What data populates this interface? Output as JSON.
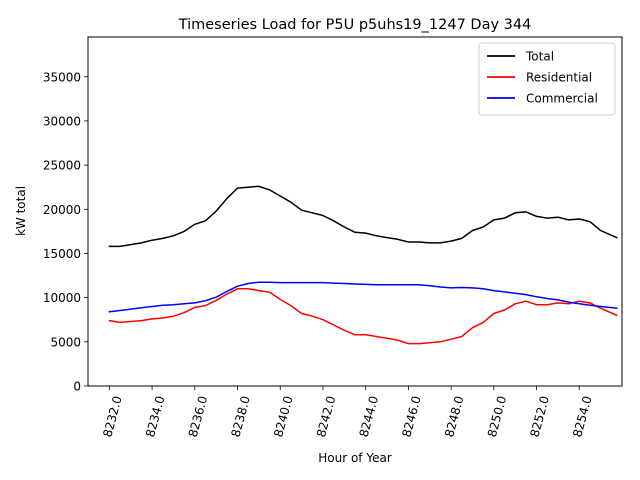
{
  "chart_data": {
    "type": "line",
    "title": "Timeseries Load for P5U p5uhs19_1247  Day 344",
    "xlabel": "Hour of Year",
    "ylabel": "kW total",
    "xlim": [
      8231.0,
      8256.0
    ],
    "ylim": [
      0,
      39500
    ],
    "xticks": [
      8232,
      8234,
      8236,
      8238,
      8240,
      8242,
      8244,
      8246,
      8248,
      8250,
      8252,
      8254
    ],
    "xtick_labels": [
      "8232.0",
      "8234.0",
      "8236.0",
      "8238.0",
      "8240.0",
      "8242.0",
      "8244.0",
      "8246.0",
      "8248.0",
      "8250.0",
      "8252.0",
      "8254.0"
    ],
    "yticks": [
      0,
      5000,
      10000,
      15000,
      20000,
      25000,
      30000,
      35000
    ],
    "ytick_labels": [
      "0",
      "5000",
      "10000",
      "15000",
      "20000",
      "25000",
      "30000",
      "35000"
    ],
    "legend_position": "top-right",
    "series": [
      {
        "name": "Total",
        "color": "#000000",
        "x": [
          8232.0,
          8232.5,
          8233.0,
          8233.5,
          8234.0,
          8234.5,
          8235.0,
          8235.5,
          8236.0,
          8236.5,
          8237.0,
          8237.5,
          8238.0,
          8238.5,
          8239.0,
          8239.5,
          8240.0,
          8240.5,
          8241.0,
          8241.5,
          8242.0,
          8242.5,
          8243.0,
          8243.5,
          8244.0,
          8244.5,
          8245.0,
          8245.5,
          8246.0,
          8246.5,
          8247.0,
          8247.5,
          8248.0,
          8248.5,
          8249.0,
          8249.5,
          8250.0,
          8250.5,
          8251.0,
          8251.5,
          8252.0,
          8252.5,
          8253.0,
          8253.5,
          8254.0,
          8254.5,
          8255.0,
          8255.75
        ],
        "values": [
          15800,
          15800,
          16000,
          16200,
          16500,
          16700,
          17000,
          17500,
          18300,
          18700,
          19800,
          21200,
          22400,
          22500,
          22600,
          22200,
          21500,
          20800,
          19900,
          19600,
          19300,
          18700,
          18000,
          17400,
          17300,
          17000,
          16800,
          16600,
          16300,
          16300,
          16200,
          16200,
          16400,
          16700,
          17600,
          18000,
          18800,
          19000,
          19600,
          19700,
          19200,
          19000,
          19100,
          18800,
          18900,
          18600,
          17600,
          16800
        ]
      },
      {
        "name": "Residential",
        "color": "#ff0000",
        "x": [
          8232.0,
          8232.5,
          8233.0,
          8233.5,
          8234.0,
          8234.5,
          8235.0,
          8235.5,
          8236.0,
          8236.5,
          8237.0,
          8237.5,
          8238.0,
          8238.5,
          8239.0,
          8239.5,
          8240.0,
          8240.5,
          8241.0,
          8241.5,
          8242.0,
          8242.5,
          8243.0,
          8243.5,
          8244.0,
          8244.5,
          8245.0,
          8245.5,
          8246.0,
          8246.5,
          8247.0,
          8247.5,
          8248.0,
          8248.5,
          8249.0,
          8249.5,
          8250.0,
          8250.5,
          8251.0,
          8251.5,
          8252.0,
          8252.5,
          8253.0,
          8253.5,
          8254.0,
          8254.5,
          8255.0,
          8255.75
        ],
        "values": [
          7400,
          7200,
          7300,
          7400,
          7600,
          7700,
          7900,
          8300,
          8900,
          9100,
          9700,
          10400,
          11000,
          11000,
          10800,
          10600,
          9800,
          9100,
          8200,
          7900,
          7500,
          6900,
          6300,
          5800,
          5800,
          5600,
          5400,
          5200,
          4800,
          4800,
          4900,
          5000,
          5300,
          5600,
          6600,
          7200,
          8200,
          8600,
          9300,
          9600,
          9200,
          9200,
          9400,
          9300,
          9600,
          9400,
          8800,
          8000
        ]
      },
      {
        "name": "Commercial",
        "color": "#0000ff",
        "x": [
          8232.0,
          8232.5,
          8233.0,
          8233.5,
          8234.0,
          8234.5,
          8235.0,
          8235.5,
          8236.0,
          8236.5,
          8237.0,
          8237.5,
          8238.0,
          8238.5,
          8239.0,
          8239.5,
          8240.0,
          8240.5,
          8241.0,
          8241.5,
          8242.0,
          8242.5,
          8243.0,
          8243.5,
          8244.0,
          8244.5,
          8245.0,
          8245.5,
          8246.0,
          8246.5,
          8247.0,
          8247.5,
          8248.0,
          8248.5,
          8249.0,
          8249.5,
          8250.0,
          8250.5,
          8251.0,
          8251.5,
          8252.0,
          8252.5,
          8253.0,
          8253.5,
          8254.0,
          8254.5,
          8255.0,
          8255.75
        ],
        "values": [
          8400,
          8550,
          8700,
          8850,
          9000,
          9150,
          9200,
          9300,
          9400,
          9650,
          10050,
          10700,
          11300,
          11600,
          11750,
          11750,
          11700,
          11700,
          11700,
          11700,
          11700,
          11650,
          11600,
          11550,
          11500,
          11450,
          11450,
          11450,
          11450,
          11450,
          11350,
          11200,
          11100,
          11150,
          11100,
          11000,
          10800,
          10650,
          10500,
          10350,
          10100,
          9900,
          9750,
          9500,
          9300,
          9150,
          9000,
          8800
        ]
      }
    ]
  }
}
